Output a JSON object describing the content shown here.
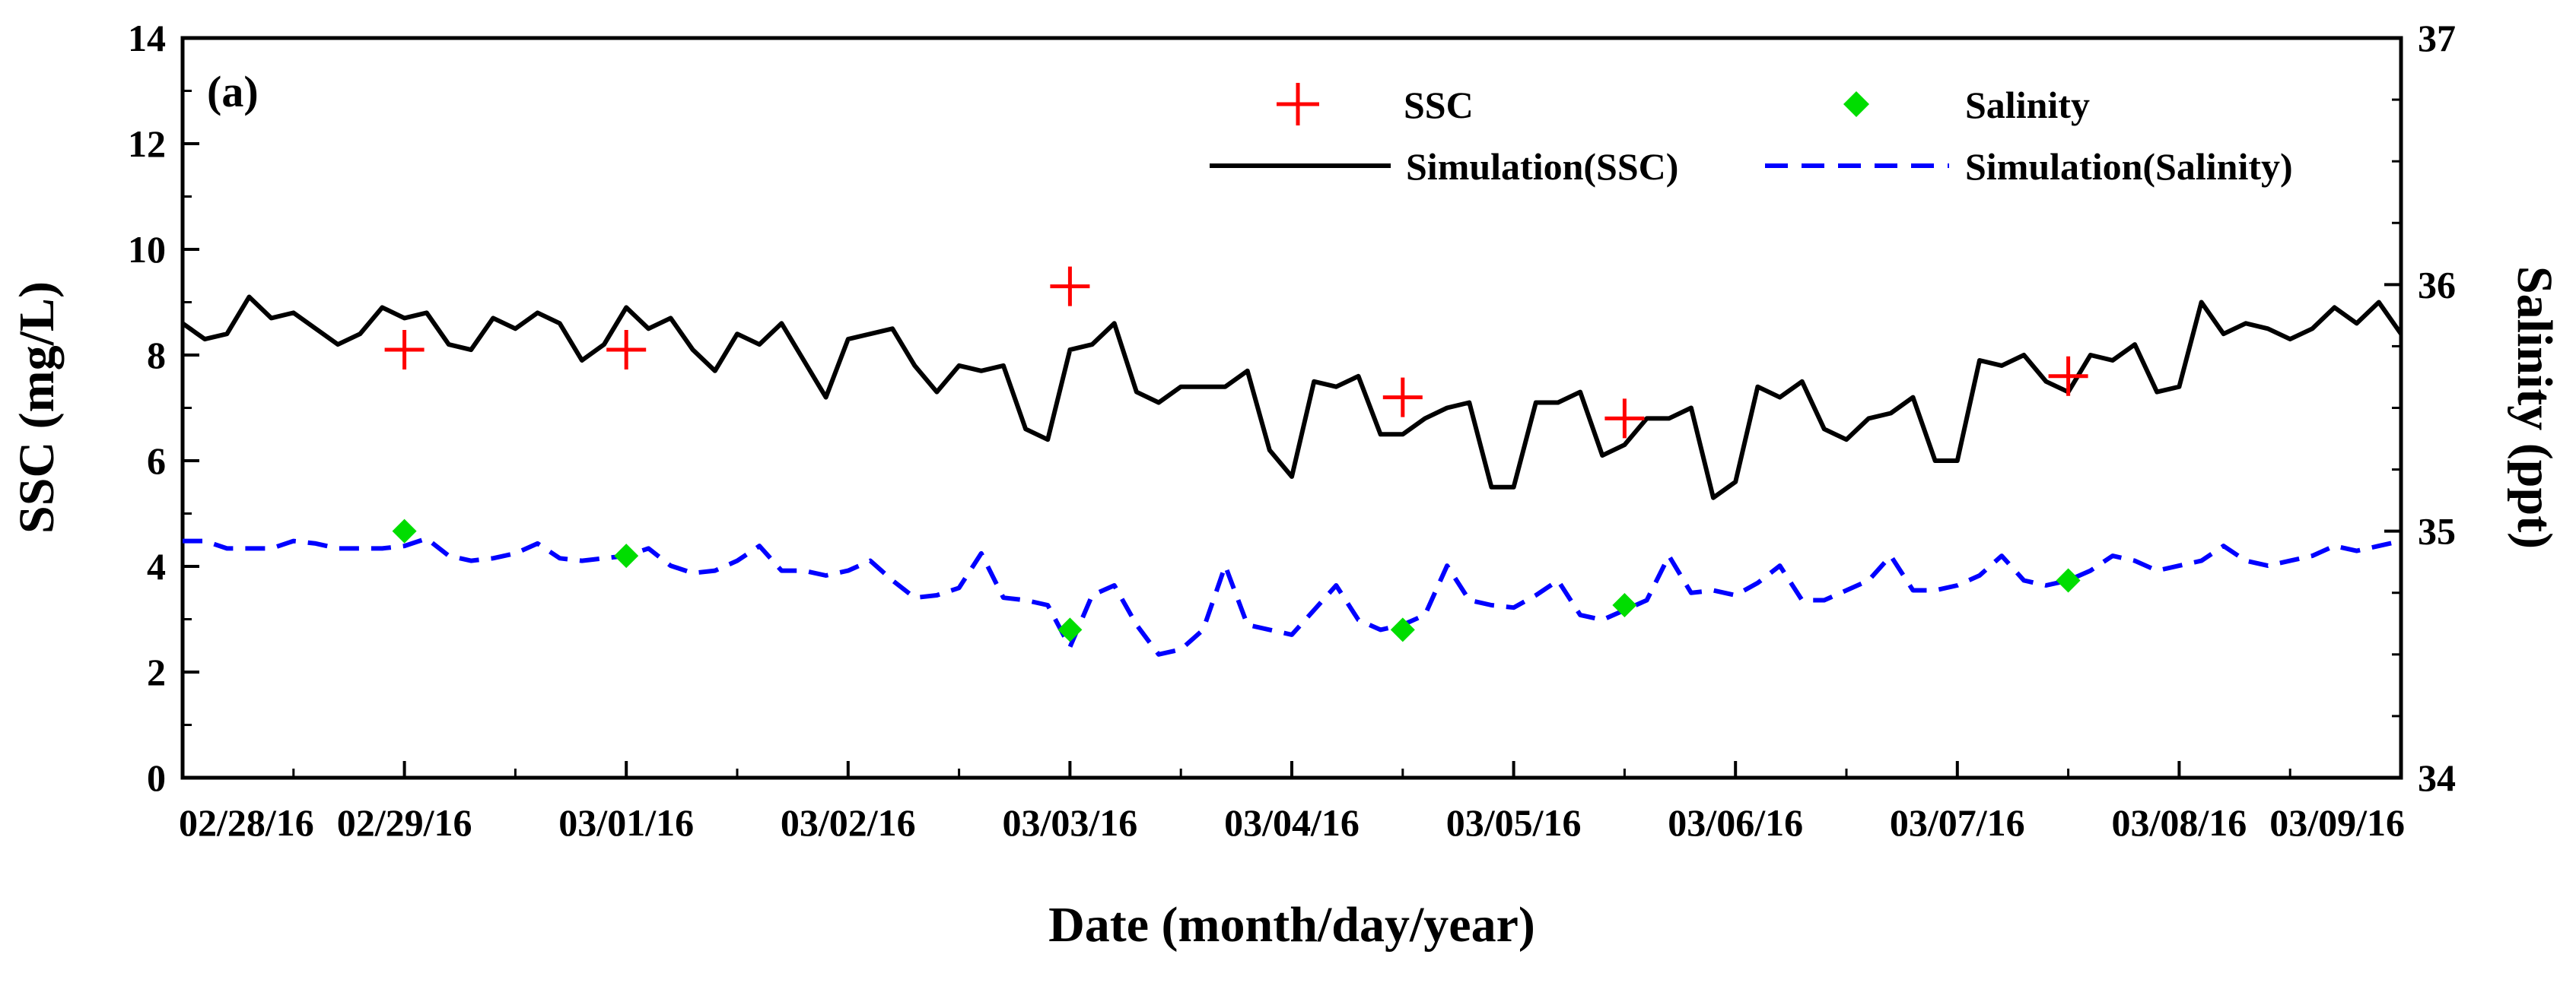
{
  "chart_data": {
    "type": "line",
    "panel_label": "(a)",
    "xlabel": "Date (month/day/year)",
    "ylabel_left": "SSC (mg/L)",
    "ylabel_right": "Salinity (ppt)",
    "x_range_days": [
      0,
      10
    ],
    "x_ticks": [
      "02/28/16",
      "02/29/16",
      "03/01/16",
      "03/02/16",
      "03/03/16",
      "03/04/16",
      "03/05/16",
      "03/06/16",
      "03/07/16",
      "03/08/16",
      "03/09/16"
    ],
    "ylim_left": [
      0,
      14
    ],
    "yticks_left": [
      "0",
      "2",
      "4",
      "6",
      "8",
      "10",
      "12",
      "14"
    ],
    "ylim_right": [
      34,
      37
    ],
    "yticks_right": [
      "34",
      "35",
      "36",
      "37"
    ],
    "legend": {
      "placement": "top-right",
      "entries": [
        {
          "key": "ssc_obs",
          "label": "SSC"
        },
        {
          "key": "salinity_obs",
          "label": "Salinity"
        },
        {
          "key": "ssc_sim",
          "label": "Simulation(SSC)"
        },
        {
          "key": "salinity_sim",
          "label": "Simulation(Salinity)"
        }
      ]
    },
    "colors": {
      "ssc_obs": "#ff0000",
      "salinity_obs": "#00dd00",
      "ssc_sim": "#000000",
      "salinity_sim": "#0000ff"
    },
    "series": [
      {
        "key": "ssc_obs",
        "axis": "left",
        "style": "plus",
        "points": [
          [
            1.0,
            8.1
          ],
          [
            2.0,
            8.1
          ],
          [
            4.0,
            9.3
          ],
          [
            5.5,
            7.2
          ],
          [
            6.5,
            6.8
          ],
          [
            8.5,
            7.6
          ]
        ]
      },
      {
        "key": "salinity_obs",
        "axis": "right",
        "style": "diamond",
        "points": [
          [
            1.0,
            35.0
          ],
          [
            2.0,
            34.9
          ],
          [
            4.0,
            34.6
          ],
          [
            5.5,
            34.6
          ],
          [
            6.5,
            34.7
          ],
          [
            8.5,
            34.8
          ]
        ]
      },
      {
        "key": "ssc_sim",
        "axis": "left",
        "style": "solid",
        "points": [
          [
            0.0,
            8.6
          ],
          [
            0.1,
            8.3
          ],
          [
            0.2,
            8.4
          ],
          [
            0.3,
            9.1
          ],
          [
            0.4,
            8.7
          ],
          [
            0.5,
            8.8
          ],
          [
            0.6,
            8.5
          ],
          [
            0.7,
            8.2
          ],
          [
            0.8,
            8.4
          ],
          [
            0.9,
            8.9
          ],
          [
            1.0,
            8.7
          ],
          [
            1.1,
            8.8
          ],
          [
            1.2,
            8.2
          ],
          [
            1.3,
            8.1
          ],
          [
            1.4,
            8.7
          ],
          [
            1.5,
            8.5
          ],
          [
            1.6,
            8.8
          ],
          [
            1.7,
            8.6
          ],
          [
            1.8,
            7.9
          ],
          [
            1.9,
            8.2
          ],
          [
            2.0,
            8.9
          ],
          [
            2.1,
            8.5
          ],
          [
            2.2,
            8.7
          ],
          [
            2.3,
            8.1
          ],
          [
            2.4,
            7.7
          ],
          [
            2.5,
            8.4
          ],
          [
            2.6,
            8.2
          ],
          [
            2.7,
            8.6
          ],
          [
            2.8,
            7.9
          ],
          [
            2.9,
            7.2
          ],
          [
            3.0,
            8.3
          ],
          [
            3.1,
            8.4
          ],
          [
            3.2,
            8.5
          ],
          [
            3.3,
            7.8
          ],
          [
            3.4,
            7.3
          ],
          [
            3.5,
            7.8
          ],
          [
            3.6,
            7.7
          ],
          [
            3.7,
            7.8
          ],
          [
            3.8,
            6.6
          ],
          [
            3.9,
            6.4
          ],
          [
            4.0,
            8.1
          ],
          [
            4.1,
            8.2
          ],
          [
            4.2,
            8.6
          ],
          [
            4.3,
            7.3
          ],
          [
            4.4,
            7.1
          ],
          [
            4.5,
            7.4
          ],
          [
            4.6,
            7.4
          ],
          [
            4.7,
            7.4
          ],
          [
            4.8,
            7.7
          ],
          [
            4.9,
            6.2
          ],
          [
            5.0,
            5.7
          ],
          [
            5.1,
            7.5
          ],
          [
            5.2,
            7.4
          ],
          [
            5.3,
            7.6
          ],
          [
            5.4,
            6.5
          ],
          [
            5.5,
            6.5
          ],
          [
            5.6,
            6.8
          ],
          [
            5.7,
            7.0
          ],
          [
            5.8,
            7.1
          ],
          [
            5.9,
            5.5
          ],
          [
            6.0,
            5.5
          ],
          [
            6.1,
            7.1
          ],
          [
            6.2,
            7.1
          ],
          [
            6.3,
            7.3
          ],
          [
            6.4,
            6.1
          ],
          [
            6.5,
            6.3
          ],
          [
            6.6,
            6.8
          ],
          [
            6.7,
            6.8
          ],
          [
            6.8,
            7.0
          ],
          [
            6.9,
            5.3
          ],
          [
            7.0,
            5.6
          ],
          [
            7.1,
            7.4
          ],
          [
            7.2,
            7.2
          ],
          [
            7.3,
            7.5
          ],
          [
            7.4,
            6.6
          ],
          [
            7.5,
            6.4
          ],
          [
            7.6,
            6.8
          ],
          [
            7.7,
            6.9
          ],
          [
            7.8,
            7.2
          ],
          [
            7.9,
            6.0
          ],
          [
            8.0,
            6.0
          ],
          [
            8.1,
            7.9
          ],
          [
            8.2,
            7.8
          ],
          [
            8.3,
            8.0
          ],
          [
            8.4,
            7.5
          ],
          [
            8.5,
            7.3
          ],
          [
            8.6,
            8.0
          ],
          [
            8.7,
            7.9
          ],
          [
            8.8,
            8.2
          ],
          [
            8.9,
            7.3
          ],
          [
            9.0,
            7.4
          ],
          [
            9.1,
            9.0
          ],
          [
            9.2,
            8.4
          ],
          [
            9.3,
            8.6
          ],
          [
            9.4,
            8.5
          ],
          [
            9.5,
            8.3
          ],
          [
            9.6,
            8.5
          ],
          [
            9.7,
            8.9
          ],
          [
            9.8,
            8.6
          ],
          [
            9.9,
            9.0
          ],
          [
            10.0,
            8.4
          ]
        ]
      },
      {
        "key": "salinity_sim",
        "axis": "right",
        "style": "dashed",
        "points": [
          [
            0.0,
            34.96
          ],
          [
            0.1,
            34.96
          ],
          [
            0.2,
            34.93
          ],
          [
            0.3,
            34.93
          ],
          [
            0.4,
            34.93
          ],
          [
            0.5,
            34.96
          ],
          [
            0.6,
            34.95
          ],
          [
            0.7,
            34.93
          ],
          [
            0.8,
            34.93
          ],
          [
            0.9,
            34.93
          ],
          [
            1.0,
            34.94
          ],
          [
            1.1,
            34.97
          ],
          [
            1.2,
            34.9
          ],
          [
            1.3,
            34.88
          ],
          [
            1.4,
            34.89
          ],
          [
            1.5,
            34.91
          ],
          [
            1.6,
            34.95
          ],
          [
            1.7,
            34.89
          ],
          [
            1.8,
            34.88
          ],
          [
            1.9,
            34.89
          ],
          [
            2.0,
            34.9
          ],
          [
            2.1,
            34.93
          ],
          [
            2.2,
            34.86
          ],
          [
            2.3,
            34.83
          ],
          [
            2.4,
            34.84
          ],
          [
            2.5,
            34.88
          ],
          [
            2.6,
            34.94
          ],
          [
            2.7,
            34.84
          ],
          [
            2.8,
            34.84
          ],
          [
            2.9,
            34.82
          ],
          [
            3.0,
            34.84
          ],
          [
            3.1,
            34.88
          ],
          [
            3.2,
            34.8
          ],
          [
            3.3,
            34.73
          ],
          [
            3.4,
            34.74
          ],
          [
            3.5,
            34.77
          ],
          [
            3.6,
            34.91
          ],
          [
            3.7,
            34.73
          ],
          [
            3.8,
            34.72
          ],
          [
            3.9,
            34.7
          ],
          [
            4.0,
            34.53
          ],
          [
            4.1,
            34.74
          ],
          [
            4.2,
            34.78
          ],
          [
            4.3,
            34.62
          ],
          [
            4.4,
            34.5
          ],
          [
            4.5,
            34.52
          ],
          [
            4.6,
            34.6
          ],
          [
            4.7,
            34.86
          ],
          [
            4.8,
            34.62
          ],
          [
            4.9,
            34.6
          ],
          [
            5.0,
            34.58
          ],
          [
            5.1,
            34.68
          ],
          [
            5.2,
            34.78
          ],
          [
            5.3,
            34.64
          ],
          [
            5.4,
            34.6
          ],
          [
            5.5,
            34.62
          ],
          [
            5.6,
            34.66
          ],
          [
            5.7,
            34.86
          ],
          [
            5.8,
            34.72
          ],
          [
            5.9,
            34.7
          ],
          [
            6.0,
            34.69
          ],
          [
            6.1,
            34.74
          ],
          [
            6.2,
            34.8
          ],
          [
            6.3,
            34.66
          ],
          [
            6.4,
            34.64
          ],
          [
            6.5,
            34.68
          ],
          [
            6.6,
            34.72
          ],
          [
            6.7,
            34.9
          ],
          [
            6.8,
            34.75
          ],
          [
            6.9,
            34.76
          ],
          [
            7.0,
            34.74
          ],
          [
            7.1,
            34.79
          ],
          [
            7.2,
            34.86
          ],
          [
            7.3,
            34.72
          ],
          [
            7.4,
            34.72
          ],
          [
            7.5,
            34.76
          ],
          [
            7.6,
            34.8
          ],
          [
            7.7,
            34.9
          ],
          [
            7.8,
            34.76
          ],
          [
            7.9,
            34.76
          ],
          [
            8.0,
            34.78
          ],
          [
            8.1,
            34.82
          ],
          [
            8.2,
            34.9
          ],
          [
            8.3,
            34.8
          ],
          [
            8.4,
            34.78
          ],
          [
            8.5,
            34.8
          ],
          [
            8.6,
            34.84
          ],
          [
            8.7,
            34.9
          ],
          [
            8.8,
            34.88
          ],
          [
            8.9,
            34.84
          ],
          [
            9.0,
            34.86
          ],
          [
            9.1,
            34.88
          ],
          [
            9.2,
            34.94
          ],
          [
            9.3,
            34.88
          ],
          [
            9.4,
            34.86
          ],
          [
            9.5,
            34.88
          ],
          [
            9.6,
            34.9
          ],
          [
            9.7,
            34.94
          ],
          [
            9.8,
            34.92
          ],
          [
            9.9,
            34.94
          ],
          [
            10.0,
            34.96
          ]
        ]
      }
    ]
  }
}
